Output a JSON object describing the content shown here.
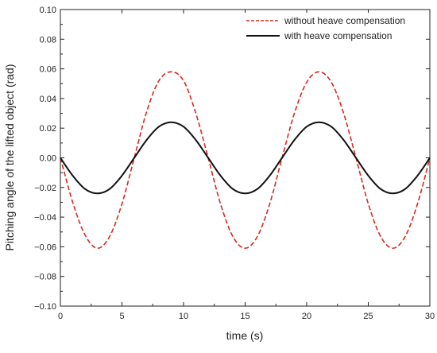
{
  "chart_data": {
    "type": "line",
    "xlabel": "time (s)",
    "ylabel": "Pitching angle of the lifted object (rad)",
    "xlim": [
      0,
      30
    ],
    "ylim": [
      -0.1,
      0.1
    ],
    "x_ticks": [
      0,
      5,
      10,
      15,
      20,
      25,
      30
    ],
    "x_tick_labels": [
      "0",
      "5",
      "10",
      "15",
      "20",
      "25",
      "30"
    ],
    "y_ticks": [
      0.1,
      0.08,
      0.06,
      0.04,
      0.02,
      0.0,
      -0.02,
      -0.04,
      -0.06,
      -0.08,
      -0.1
    ],
    "y_tick_labels": [
      "0.10",
      "0.08",
      "0.06",
      "0.04",
      "0.02",
      "0.00",
      "−0.02",
      "−0.04",
      "−0.06",
      "−0.08",
      "−0.10"
    ],
    "grid": false,
    "legend_position": "top-right",
    "series": [
      {
        "name": "without heave compensation",
        "color": "#d9291c",
        "style": "dashed",
        "x": [
          0,
          1,
          2,
          3,
          4,
          5,
          6,
          7,
          8,
          9,
          10,
          11,
          12,
          13,
          14,
          15,
          16,
          17,
          18,
          19,
          20,
          21,
          22,
          23,
          24,
          25,
          26,
          27,
          28,
          29,
          30
        ],
        "y": [
          0.0,
          -0.03,
          -0.052,
          -0.061,
          -0.053,
          -0.031,
          0.0,
          0.031,
          0.052,
          0.058,
          0.052,
          0.03,
          0.0,
          -0.031,
          -0.053,
          -0.061,
          -0.053,
          -0.031,
          0.0,
          0.03,
          0.051,
          0.058,
          0.051,
          0.03,
          0.0,
          -0.031,
          -0.053,
          -0.061,
          -0.053,
          -0.031,
          0.0
        ]
      },
      {
        "name": "with heave compensation",
        "color": "#111111",
        "style": "solid",
        "x": [
          0,
          1,
          2,
          3,
          4,
          5,
          6,
          7,
          8,
          9,
          10,
          11,
          12,
          13,
          14,
          15,
          16,
          17,
          18,
          19,
          20,
          21,
          22,
          23,
          24,
          25,
          26,
          27,
          28,
          29,
          30
        ],
        "y": [
          0.0,
          -0.012,
          -0.021,
          -0.024,
          -0.021,
          -0.012,
          0.0,
          0.012,
          0.021,
          0.024,
          0.021,
          0.012,
          0.0,
          -0.012,
          -0.021,
          -0.024,
          -0.021,
          -0.012,
          0.0,
          0.012,
          0.021,
          0.024,
          0.021,
          0.012,
          0.0,
          -0.012,
          -0.021,
          -0.024,
          -0.021,
          -0.012,
          0.0
        ]
      }
    ]
  }
}
